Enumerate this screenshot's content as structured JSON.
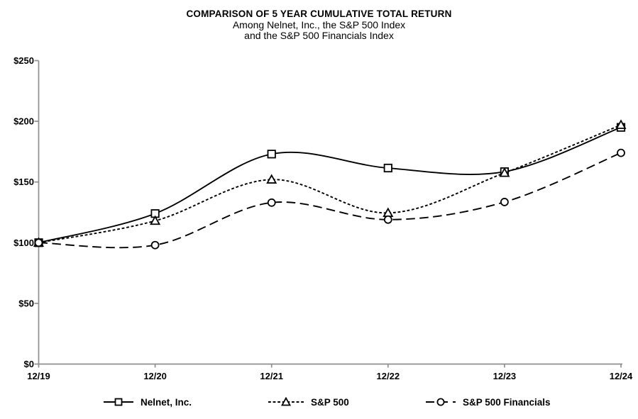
{
  "title": {
    "line1": "COMPARISON OF 5 YEAR CUMULATIVE TOTAL RETURN",
    "line2": "Among Nelnet, Inc., the S&P 500 Index",
    "line3": "and the S&P 500 Financials Index"
  },
  "chart_data": {
    "type": "line",
    "title": "COMPARISON OF 5 YEAR CUMULATIVE TOTAL RETURN",
    "subtitle": "Among Nelnet, Inc., the S&P 500 Index and the S&P 500 Financials Index",
    "categories": [
      "12/19",
      "12/20",
      "12/21",
      "12/22",
      "12/23",
      "12/24"
    ],
    "series": [
      {
        "name": "Nelnet, Inc.",
        "values": [
          100,
          124,
          173,
          161.5,
          158.5,
          195
        ],
        "line_style": "solid",
        "marker": "square"
      },
      {
        "name": "S&P 500",
        "values": [
          100,
          118,
          152,
          124.5,
          157.5,
          197
        ],
        "line_style": "dotted",
        "marker": "triangle"
      },
      {
        "name": "S&P 500 Financials",
        "values": [
          100,
          98,
          133,
          119,
          133.5,
          174
        ],
        "line_style": "dashed",
        "marker": "circle"
      }
    ],
    "xlabel": "",
    "ylabel": "",
    "ylim": [
      0,
      250
    ],
    "ytick_step": 50,
    "ytick_labels": [
      "$0",
      "$50",
      "$100",
      "$150",
      "$200",
      "$250"
    ],
    "grid": false,
    "smooth": true,
    "legend_position": "bottom",
    "colors": {
      "line": "#000000",
      "axis": "#8f8f8f",
      "text": "#000000",
      "background": "#ffffff"
    }
  }
}
